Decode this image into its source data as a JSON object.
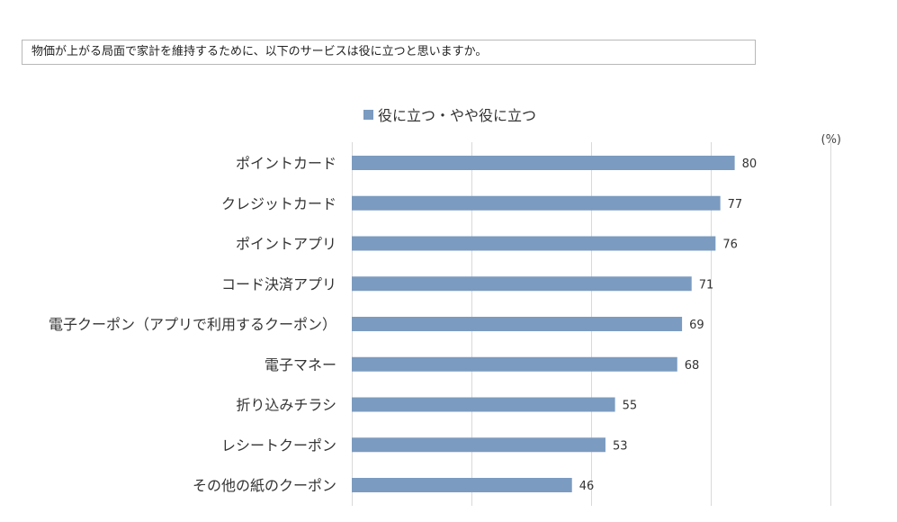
{
  "question": "物価が上がる局面で家計を維持するために、以下のサービスは役に立つと思いますか。",
  "chart_data": {
    "type": "bar",
    "orientation": "horizontal",
    "legend": "役に立つ・やや役に立つ",
    "legend_placement": "top",
    "unit": "(%)",
    "categories": [
      "ポイントカード",
      "クレジットカード",
      "ポイントアプリ",
      "コード決済アプリ",
      "電子クーポン（アプリで利用するクーポン）",
      "電子マネー",
      "折り込みチラシ",
      "レシートクーポン",
      "その他の紙のクーポン"
    ],
    "values": [
      80,
      77,
      76,
      71,
      69,
      68,
      55,
      53,
      46
    ],
    "xlim": [
      0,
      100
    ],
    "gridlines": [
      0,
      25,
      50,
      75,
      100
    ],
    "grid": true,
    "bar_color": "#7b9bc0"
  }
}
